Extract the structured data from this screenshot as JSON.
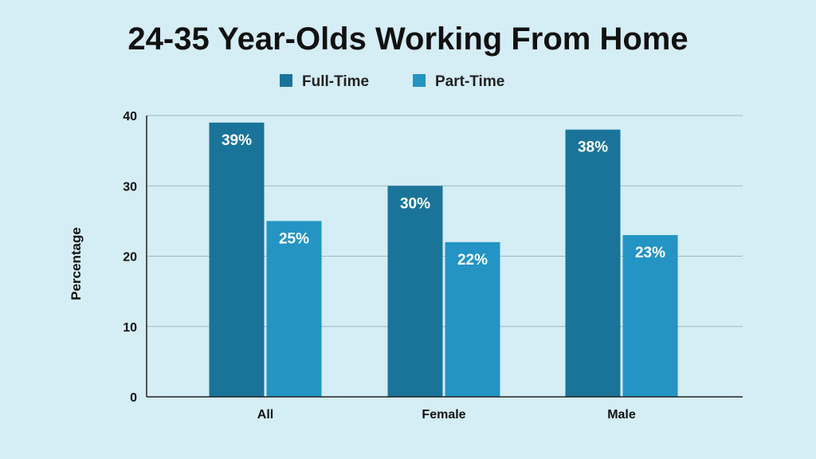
{
  "chart_data": {
    "type": "bar",
    "title": "24-35 Year-Olds Working From Home",
    "xlabel": "",
    "ylabel": "Percentage",
    "categories": [
      "All",
      "Female",
      "Male"
    ],
    "series": [
      {
        "name": "Full-Time",
        "color": "#1a7499",
        "values": [
          39,
          30,
          38
        ],
        "labels": [
          "39%",
          "30%",
          "38%"
        ]
      },
      {
        "name": "Part-Time",
        "color": "#2394c4",
        "values": [
          25,
          22,
          23
        ],
        "labels": [
          "25%",
          "22%",
          "23%"
        ]
      }
    ],
    "ylim": [
      0,
      40
    ],
    "yticks": [
      0,
      10,
      20,
      30,
      40
    ],
    "grid": true,
    "legend_position": "top-center"
  }
}
